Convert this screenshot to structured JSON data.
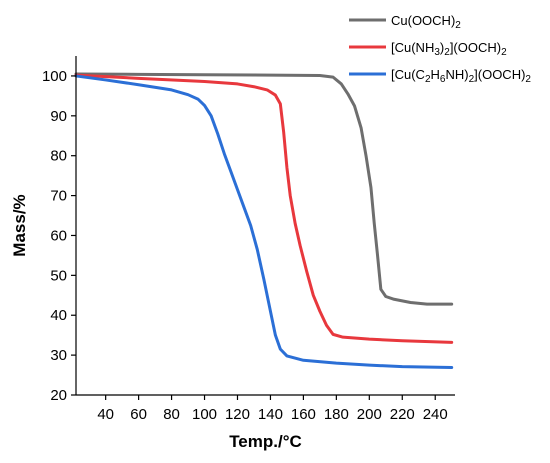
{
  "chart_data": {
    "type": "line",
    "xlabel": "Temp./°C",
    "ylabel": "Mass/%",
    "xlim": [
      22,
      252
    ],
    "ylim": [
      20,
      105
    ],
    "xticks": [
      40,
      60,
      80,
      100,
      120,
      140,
      160,
      180,
      200,
      220,
      240
    ],
    "yticks": [
      20,
      30,
      40,
      50,
      60,
      70,
      80,
      90,
      100
    ],
    "grid": false,
    "legend_position": "top-right",
    "series": [
      {
        "name": "Cu(OOCH)",
        "name_sub": "2",
        "color": "#6e6e6e",
        "x": [
          22,
          60,
          100,
          140,
          170,
          178,
          183,
          187,
          191,
          195,
          198,
          201,
          203,
          205,
          207,
          210,
          215,
          225,
          235,
          250
        ],
        "y": [
          100.5,
          100.4,
          100.3,
          100.2,
          100.1,
          99.7,
          98.0,
          95.5,
          92.5,
          87.0,
          80.0,
          72.0,
          63.0,
          55.0,
          46.5,
          44.7,
          44.0,
          43.2,
          42.8,
          42.8
        ]
      },
      {
        "name": "[Cu(NH",
        "name_sub": "3",
        "name_mid": ")",
        "name_sub2": "2",
        "name_end": "](OOCH)",
        "name_sub3": "2",
        "color": "#e8383d",
        "x": [
          22,
          60,
          100,
          120,
          130,
          138,
          143,
          146,
          148,
          150,
          152,
          155,
          158,
          162,
          166,
          170,
          174,
          178,
          184,
          200,
          220,
          250
        ],
        "y": [
          100.2,
          99.4,
          98.6,
          98.0,
          97.3,
          96.5,
          95.2,
          93.0,
          86.0,
          77.0,
          70.0,
          63.0,
          57.5,
          51.0,
          45.0,
          41.0,
          37.5,
          35.2,
          34.5,
          34.0,
          33.6,
          33.2
        ]
      },
      {
        "name": "[Cu(C",
        "name_sub": "2",
        "name_mid": "H",
        "name_sub2": "6",
        "name_end": "NH)",
        "name_sub3": "2",
        "name_tail": "](OOCH)",
        "name_sub4": "2",
        "color": "#2b6fd6",
        "x": [
          22,
          40,
          60,
          80,
          90,
          96,
          100,
          104,
          108,
          112,
          116,
          120,
          124,
          128,
          132,
          136,
          140,
          143,
          146,
          150,
          160,
          180,
          200,
          220,
          250
        ],
        "y": [
          100.0,
          99.0,
          97.8,
          96.5,
          95.3,
          94.2,
          92.6,
          90.0,
          85.5,
          80.5,
          76.0,
          71.5,
          67.0,
          62.5,
          56.5,
          49.0,
          41.0,
          35.0,
          31.5,
          29.8,
          28.7,
          28.0,
          27.5,
          27.1,
          26.9
        ]
      }
    ]
  }
}
